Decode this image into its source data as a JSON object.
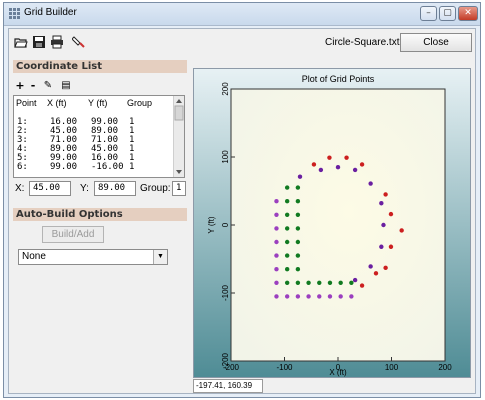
{
  "window": {
    "title": "Grid Builder"
  },
  "titlebar_buttons": {
    "minimize": "–",
    "maximize": "▢",
    "close": "✕"
  },
  "toolbar": {
    "icons": [
      "open-folder-icon",
      "save-disk-icon",
      "print-icon",
      "tool-icon"
    ],
    "filename": "Circle-Square.txt",
    "close_label": "Close"
  },
  "coordinate_list": {
    "heading": "Coordinate List",
    "buttons": [
      "+",
      "-",
      "✎",
      "▤"
    ],
    "columns": [
      "Point",
      "X (ft)",
      "Y (ft)",
      "Group"
    ],
    "rows": [
      [
        "1:",
        "16.00",
        "99.00",
        "1"
      ],
      [
        "2:",
        "45.00",
        "89.00",
        "1"
      ],
      [
        "3:",
        "71.00",
        "71.00",
        "1"
      ],
      [
        "4:",
        "89.00",
        "45.00",
        "1"
      ],
      [
        "5:",
        "99.00",
        "16.00",
        "1"
      ],
      [
        "6:",
        "99.00",
        "-16.00",
        "1"
      ]
    ]
  },
  "editor": {
    "x_label": "X:",
    "x_value": "45.00",
    "y_label": "Y:",
    "y_value": "89.00",
    "group_label": "Group:",
    "group_value": "1"
  },
  "auto_build": {
    "heading": "Auto-Build Options",
    "build_label": "Build/Add",
    "select_value": "None"
  },
  "status": {
    "cursor_coords": "-197.41, 160.39"
  },
  "colors": {
    "red": "#cc1f1f",
    "purple": "#6a1fa0",
    "green": "#117a21",
    "magenta": "#9b3fbf"
  },
  "chart_data": {
    "type": "scatter",
    "title": "Plot of Grid Points",
    "xlabel": "X (ft)",
    "ylabel": "Y (ft)",
    "xlim": [
      -200,
      200
    ],
    "ylim": [
      -200,
      200
    ],
    "xticks": [
      -200,
      -100,
      0,
      100,
      200
    ],
    "yticks": [
      -200,
      -100,
      0,
      100,
      200
    ],
    "series": [
      {
        "color": "red",
        "points": [
          [
            -45,
            89
          ],
          [
            -16,
            99
          ],
          [
            16,
            99
          ],
          [
            45,
            89
          ],
          [
            89,
            45
          ],
          [
            99,
            16
          ],
          [
            119,
            -8
          ],
          [
            99,
            -32
          ],
          [
            89,
            -63
          ],
          [
            45,
            -89
          ],
          [
            71,
            -71
          ]
        ]
      },
      {
        "color": "purple",
        "points": [
          [
            -71,
            71
          ],
          [
            -32,
            81
          ],
          [
            0,
            85
          ],
          [
            32,
            81
          ],
          [
            61,
            61
          ],
          [
            81,
            32
          ],
          [
            85,
            0
          ],
          [
            81,
            -32
          ],
          [
            61,
            -61
          ],
          [
            32,
            -81
          ]
        ]
      },
      {
        "color": "green",
        "points": [
          [
            -95,
            55
          ],
          [
            -95,
            35
          ],
          [
            -95,
            15
          ],
          [
            -95,
            -5
          ],
          [
            -95,
            -25
          ],
          [
            -95,
            -45
          ],
          [
            -95,
            -65
          ],
          [
            -95,
            -85
          ],
          [
            -75,
            55
          ],
          [
            -75,
            35
          ],
          [
            -75,
            15
          ],
          [
            -75,
            -5
          ],
          [
            -75,
            -25
          ],
          [
            -75,
            -45
          ],
          [
            -75,
            -65
          ],
          [
            -75,
            -85
          ],
          [
            -55,
            -85
          ],
          [
            -35,
            -85
          ],
          [
            -15,
            -85
          ],
          [
            5,
            -85
          ],
          [
            25,
            -85
          ]
        ]
      },
      {
        "color": "magenta",
        "points": [
          [
            -115,
            35
          ],
          [
            -115,
            15
          ],
          [
            -115,
            -5
          ],
          [
            -115,
            -25
          ],
          [
            -115,
            -45
          ],
          [
            -115,
            -65
          ],
          [
            -115,
            -85
          ],
          [
            -115,
            -105
          ],
          [
            -95,
            -105
          ],
          [
            -75,
            -105
          ],
          [
            -55,
            -105
          ],
          [
            -35,
            -105
          ],
          [
            -15,
            -105
          ],
          [
            5,
            -105
          ],
          [
            25,
            -105
          ]
        ]
      }
    ]
  }
}
